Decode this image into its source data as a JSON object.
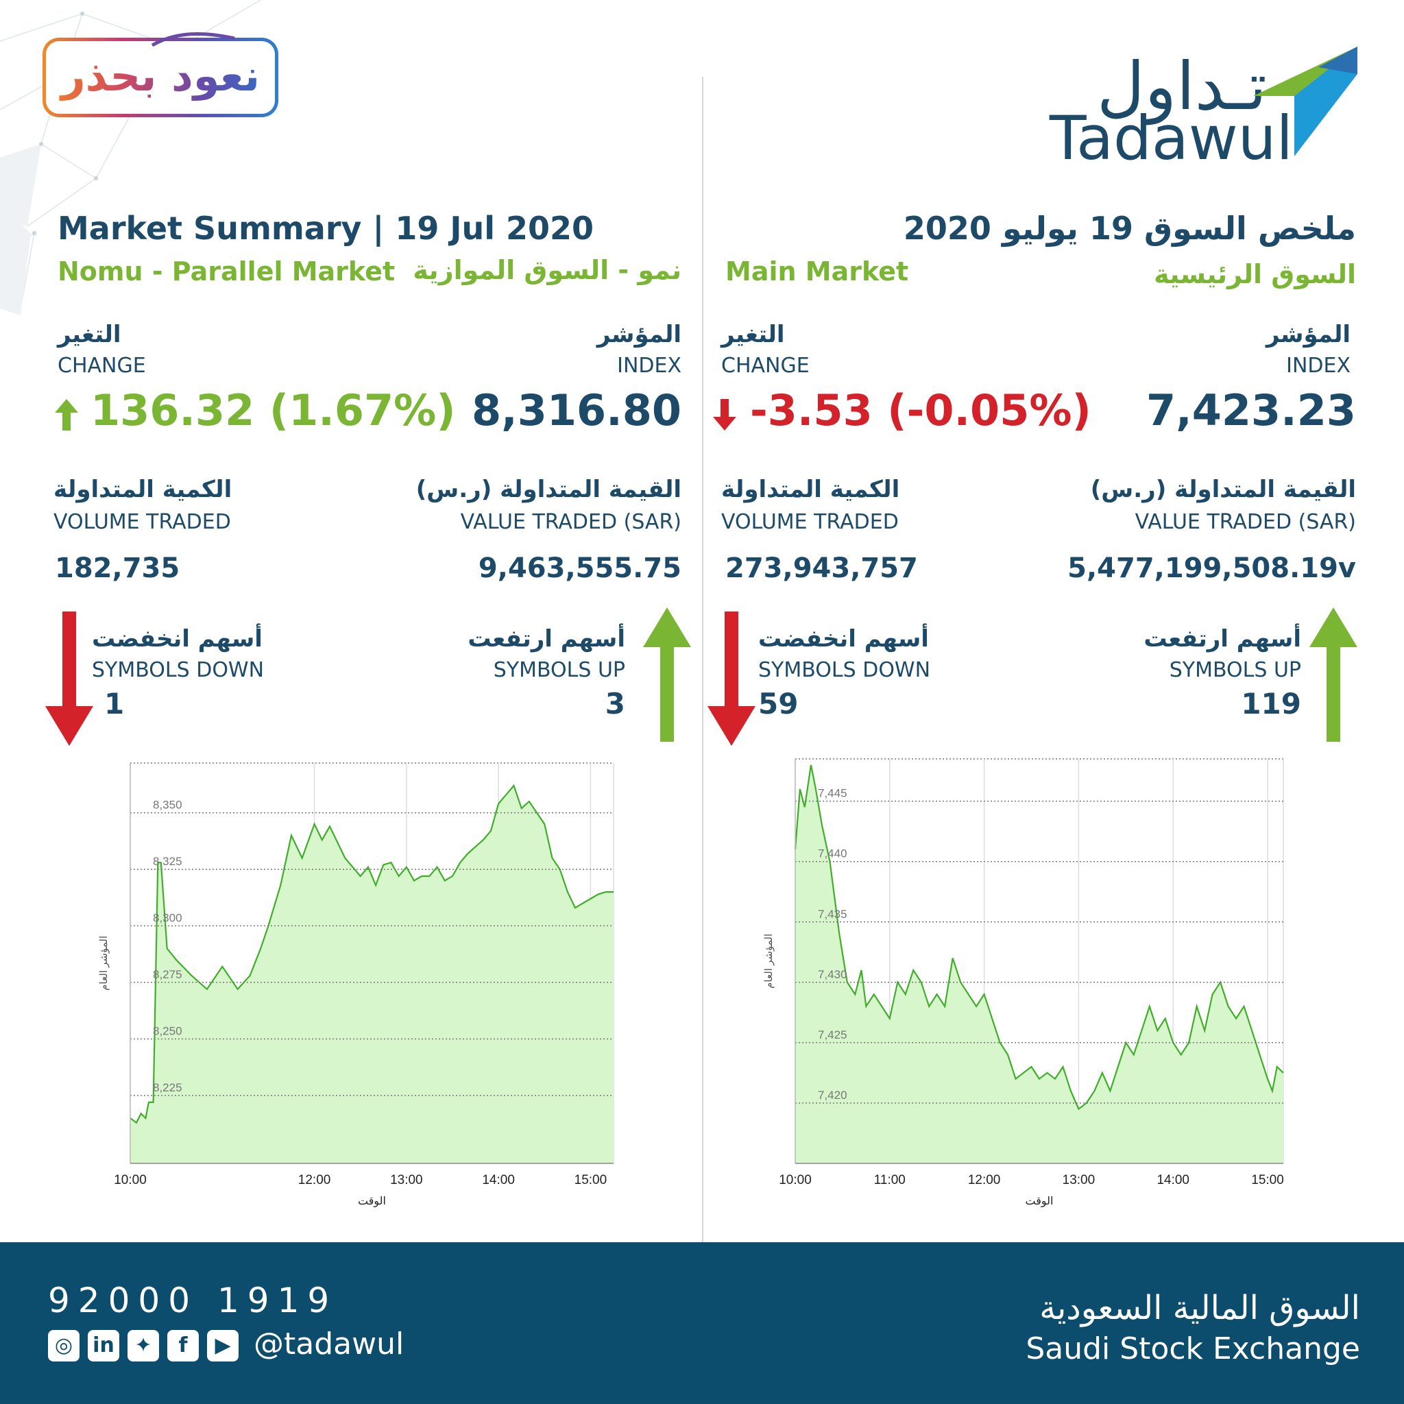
{
  "header": {
    "badge_text": "نعود بحذر",
    "logo_ar": "تـداول",
    "logo_en": "Tadawul",
    "title_en": "Market Summary | 19 Jul 2020",
    "title_ar": "ملخص السوق  19 يوليو 2020"
  },
  "nomu": {
    "name_en": "Nomu - Parallel Market",
    "name_ar": "نمو - السوق الموازية",
    "change_label_ar": "التغير",
    "change_label_en": "CHANGE",
    "index_label_ar": "المؤشر",
    "index_label_en": "INDEX",
    "change_value": "136.32 (1.67%)",
    "index_value": "8,316.80",
    "volume_label_ar": "الكمية المتداولة",
    "volume_label_en": "VOLUME TRADED",
    "value_label_ar": "القيمة المتداولة (ر.س)",
    "value_label_en": "VALUE TRADED (SAR)",
    "volume_value": "182,735",
    "value_value": "9,463,555.75",
    "down_label_ar": "أسهم انخفضت",
    "down_label_en": "SYMBOLS DOWN",
    "down_count": "1",
    "up_label_ar": "أسهم ارتفعت",
    "up_label_en": "SYMBOLS UP",
    "up_count": "3"
  },
  "main": {
    "name_en": "Main Market",
    "name_ar": "السوق الرئيسية",
    "change_label_ar": "التغير",
    "change_label_en": "CHANGE",
    "index_label_ar": "المؤشر",
    "index_label_en": "INDEX",
    "change_value": "-3.53 (-0.05%)",
    "index_value": "7,423.23",
    "volume_label_ar": "الكمية المتداولة",
    "volume_label_en": "VOLUME TRADED",
    "value_label_ar": "القيمة المتداولة (ر.س)",
    "value_label_en": "VALUE TRADED (SAR)",
    "volume_value": "273,943,757",
    "value_value": "5,477,199,508.19v",
    "down_label_ar": "أسهم انخفضت",
    "down_label_en": "SYMBOLS DOWN",
    "down_count": "59",
    "up_label_ar": "أسهم ارتفعت",
    "up_label_en": "SYMBOLS UP",
    "up_count": "119"
  },
  "colors": {
    "navy": "#1c4a68",
    "green": "#7ab534",
    "red": "#d3222a",
    "chart_line": "#3fae29",
    "chart_fill": "#d8f6cc",
    "footer": "#0c4d6e"
  },
  "footer": {
    "phone": "92000 1919",
    "handle": "@tadawul",
    "social_icons": [
      "instagram-icon",
      "linkedin-icon",
      "twitter-icon",
      "facebook-icon",
      "youtube-icon"
    ],
    "exchange_ar": "السوق المالية السعودية",
    "exchange_en": "Saudi Stock Exchange"
  },
  "chart_data": [
    {
      "type": "area",
      "market": "Nomu - Parallel Market",
      "xlabel": "الوقت",
      "ylabel": "المؤشر العام",
      "x_range": [
        "10:00",
        "15:15"
      ],
      "x_ticks": [
        "10:00",
        "12:00",
        "13:00",
        "14:00",
        "15:00"
      ],
      "y_ticks": [
        "8,225",
        "8,250",
        "8,275",
        "8,300",
        "8,325",
        "8,350"
      ],
      "ylim": [
        8195,
        8372
      ],
      "grid": true,
      "x": [
        "10:00",
        "10:04",
        "10:07",
        "10:10",
        "10:12",
        "10:15",
        "10:18",
        "10:20",
        "10:24",
        "10:30",
        "10:40",
        "10:50",
        "11:00",
        "11:10",
        "11:18",
        "11:25",
        "11:30",
        "11:38",
        "11:45",
        "11:52",
        "12:00",
        "12:05",
        "12:10",
        "12:20",
        "12:30",
        "12:35",
        "12:40",
        "12:45",
        "12:50",
        "12:55",
        "13:00",
        "13:05",
        "13:10",
        "13:15",
        "13:20",
        "13:25",
        "13:30",
        "13:35",
        "13:40",
        "13:45",
        "13:50",
        "13:55",
        "14:00",
        "14:05",
        "14:10",
        "14:15",
        "14:20",
        "14:25",
        "14:30",
        "14:35",
        "14:40",
        "14:45",
        "14:50",
        "14:55",
        "15:00",
        "15:05",
        "15:10",
        "15:15"
      ],
      "y": [
        8215,
        8213,
        8217,
        8215,
        8222,
        8222,
        8328,
        8328,
        8290,
        8285,
        8278,
        8272,
        8282,
        8272,
        8278,
        8290,
        8300,
        8318,
        8340,
        8330,
        8345,
        8338,
        8344,
        8330,
        8322,
        8326,
        8318,
        8327,
        8328,
        8322,
        8326,
        8320,
        8322,
        8322,
        8326,
        8320,
        8322,
        8328,
        8332,
        8335,
        8338,
        8342,
        8354,
        8358,
        8362,
        8352,
        8355,
        8350,
        8345,
        8330,
        8325,
        8315,
        8308,
        8310,
        8312,
        8314,
        8315,
        8315
      ]
    },
    {
      "type": "area",
      "market": "Main Market",
      "xlabel": "الوقت",
      "ylabel": "المؤشر العام",
      "x_range": [
        "10:00",
        "15:10"
      ],
      "x_ticks": [
        "10:00",
        "11:00",
        "12:00",
        "13:00",
        "14:00",
        "15:00"
      ],
      "y_ticks": [
        "7,420",
        "7,425",
        "7,430",
        "7,435",
        "7,440",
        "7,445"
      ],
      "ylim": [
        7415.0,
        7448.5
      ],
      "grid": true,
      "x": [
        "10:00",
        "10:03",
        "10:06",
        "10:10",
        "10:13",
        "10:17",
        "10:22",
        "10:28",
        "10:33",
        "10:38",
        "10:42",
        "10:45",
        "10:50",
        "10:55",
        "11:00",
        "11:05",
        "11:10",
        "11:15",
        "11:20",
        "11:25",
        "11:30",
        "11:35",
        "11:40",
        "11:45",
        "11:50",
        "11:55",
        "12:00",
        "12:05",
        "12:10",
        "12:15",
        "12:20",
        "12:25",
        "12:30",
        "12:35",
        "12:40",
        "12:45",
        "12:50",
        "12:55",
        "13:00",
        "13:05",
        "13:10",
        "13:15",
        "13:20",
        "13:25",
        "13:30",
        "13:35",
        "13:40",
        "13:45",
        "13:50",
        "13:55",
        "14:00",
        "14:05",
        "14:10",
        "14:15",
        "14:20",
        "14:25",
        "14:30",
        "14:35",
        "14:40",
        "14:45",
        "14:50",
        "14:55",
        "15:00",
        "15:03",
        "15:06",
        "15:10"
      ],
      "y": [
        7441,
        7446,
        7444.5,
        7448,
        7446,
        7443,
        7440,
        7434,
        7430,
        7429,
        7431,
        7428,
        7429,
        7428,
        7427,
        7430,
        7429,
        7431,
        7430,
        7428,
        7429,
        7428,
        7432,
        7430,
        7429,
        7428,
        7429,
        7427,
        7425,
        7424,
        7422,
        7422.5,
        7423,
        7422,
        7422.5,
        7422,
        7423,
        7421,
        7419.5,
        7420,
        7421,
        7422.5,
        7421,
        7423,
        7425,
        7424,
        7426,
        7428,
        7426,
        7427,
        7425,
        7424,
        7425,
        7428,
        7426,
        7429,
        7430,
        7428,
        7427,
        7428,
        7426,
        7424,
        7422,
        7421,
        7423,
        7422.5
      ]
    }
  ]
}
